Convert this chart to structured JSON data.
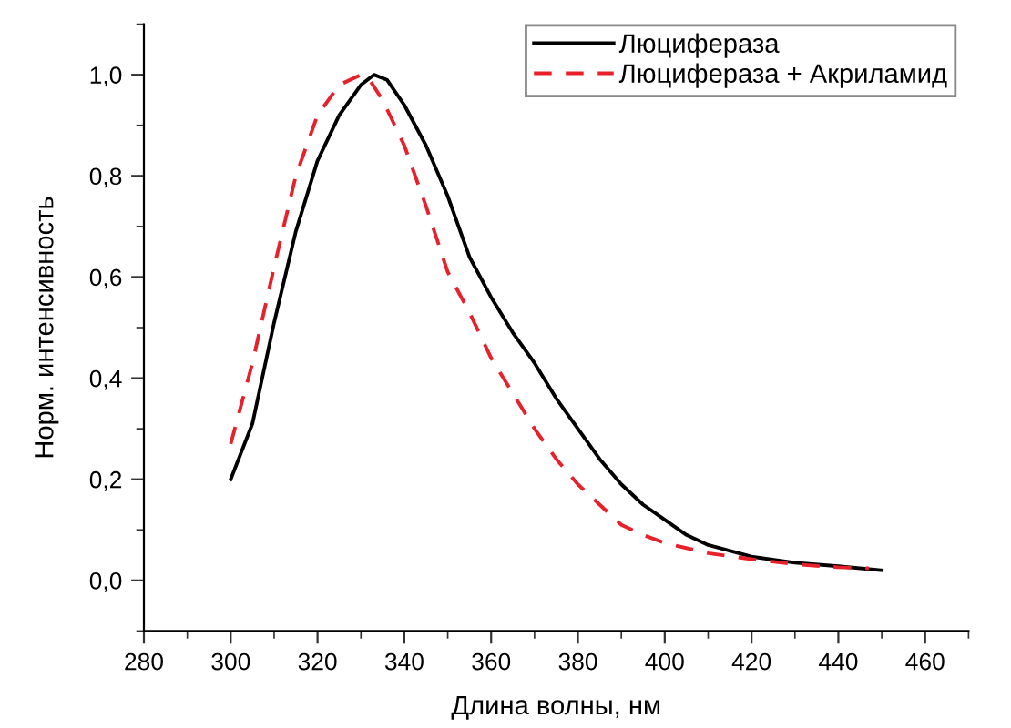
{
  "chart_data": {
    "type": "line",
    "xlabel": "Длина волны, нм",
    "ylabel": "Норм. интенсивность",
    "xlim": [
      280,
      470
    ],
    "xticks": [
      280,
      300,
      320,
      340,
      360,
      380,
      400,
      420,
      440,
      460
    ],
    "ylim": [
      -0.1,
      1.1
    ],
    "yticks": [
      {
        "value": 0,
        "label": "0,0"
      },
      {
        "value": 0.2,
        "label": "0,2"
      },
      {
        "value": 0.4,
        "label": "0,4"
      },
      {
        "value": 0.6,
        "label": "0,6"
      },
      {
        "value": 0.8,
        "label": "0,8"
      },
      {
        "value": 1.0,
        "label": "1,0"
      }
    ],
    "legend": "top right",
    "grid": false,
    "marker": "none",
    "series": [
      {
        "name": "Люцифераза",
        "color": "#000000",
        "line_style": "solid",
        "x": [
          300,
          305,
          310,
          315,
          320,
          325,
          330,
          333,
          336,
          340,
          345,
          350,
          355,
          360,
          365,
          370,
          375,
          380,
          385,
          390,
          395,
          400,
          405,
          410,
          420,
          430,
          440,
          450
        ],
        "values": [
          0.2,
          0.31,
          0.51,
          0.69,
          0.83,
          0.92,
          0.98,
          1.0,
          0.99,
          0.94,
          0.86,
          0.76,
          0.64,
          0.56,
          0.49,
          0.43,
          0.36,
          0.3,
          0.24,
          0.19,
          0.15,
          0.12,
          0.09,
          0.07,
          0.047,
          0.035,
          0.028,
          0.02
        ]
      },
      {
        "name": "Люцифераза + Акриламид",
        "color": "#e8202a",
        "line_style": "dashed",
        "x": [
          300,
          305,
          310,
          315,
          320,
          325,
          330,
          332,
          335,
          340,
          345,
          350,
          355,
          360,
          365,
          370,
          375,
          380,
          385,
          390,
          395,
          400,
          410,
          420,
          430,
          440,
          447
        ],
        "values": [
          0.27,
          0.43,
          0.62,
          0.8,
          0.92,
          0.98,
          1.0,
          0.99,
          0.95,
          0.86,
          0.74,
          0.61,
          0.53,
          0.44,
          0.37,
          0.3,
          0.24,
          0.19,
          0.15,
          0.11,
          0.09,
          0.074,
          0.054,
          0.042,
          0.032,
          0.026,
          0.024
        ]
      }
    ]
  }
}
